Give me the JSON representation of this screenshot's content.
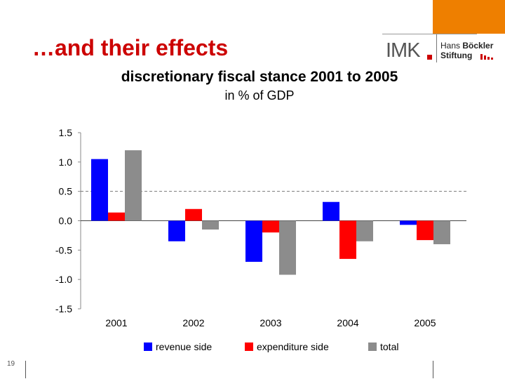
{
  "slide": {
    "title": "…and their effects",
    "page_number": "19"
  },
  "logo": {
    "imk": "IMK",
    "line1_light": "Hans",
    "line1_bold": "Böckler",
    "line2": "Stiftung"
  },
  "colors": {
    "orange": "#ee7f00",
    "title_red": "#cc0000"
  },
  "chart_data": {
    "type": "bar",
    "title": "discretionary fiscal stance 2001 to 2005",
    "subtitle": "in % of GDP",
    "categories": [
      "2001",
      "2002",
      "2003",
      "2004",
      "2005"
    ],
    "series": [
      {
        "name": "revenue side",
        "color": "#0000ff",
        "values": [
          1.05,
          -0.35,
          -0.7,
          0.32,
          -0.07
        ]
      },
      {
        "name": "expenditure side",
        "color": "#ff0000",
        "values": [
          0.14,
          0.2,
          -0.2,
          -0.65,
          -0.33
        ]
      },
      {
        "name": "total",
        "color": "#8c8c8c",
        "values": [
          1.2,
          -0.15,
          -0.92,
          -0.35,
          -0.4
        ]
      }
    ],
    "ylim": [
      -1.5,
      1.5
    ],
    "yticks": [
      "1.5",
      "1.0",
      "0.5",
      "0.0",
      "-0.5",
      "-1.0",
      "-1.5"
    ],
    "ytick_values": [
      1.5,
      1.0,
      0.5,
      0.0,
      -0.5,
      -1.0,
      -1.5
    ],
    "reference_line": 0.5,
    "legend_position": "bottom"
  }
}
